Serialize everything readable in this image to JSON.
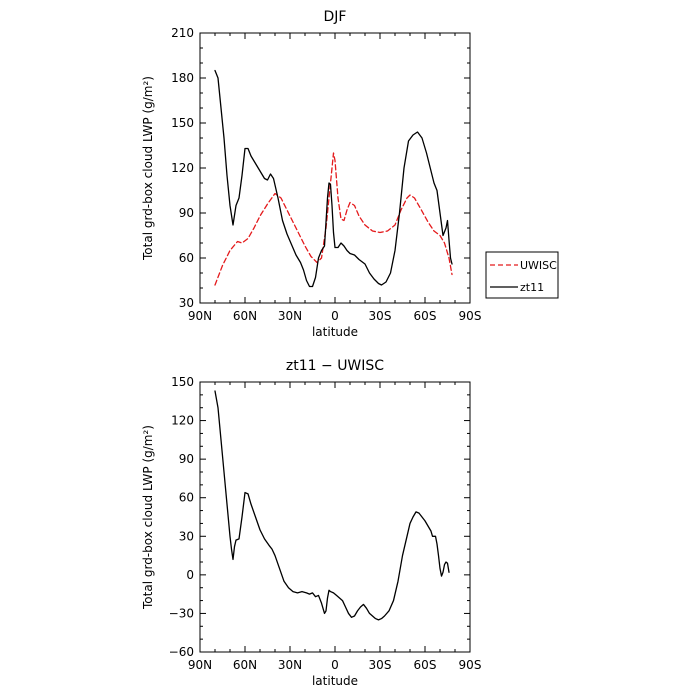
{
  "chart_data": [
    {
      "type": "line",
      "title": "DJF",
      "xlabel": "latitude",
      "ylabel": "Total grd-box cloud LWP (g/m²)",
      "xlim": [
        90,
        -90
      ],
      "ylim": [
        30,
        210
      ],
      "x_ticks": [
        90,
        60,
        30,
        0,
        -30,
        -60,
        -90
      ],
      "x_tick_labels": [
        "90N",
        "60N",
        "30N",
        "0",
        "30S",
        "60S",
        "90S"
      ],
      "y_ticks": [
        30,
        60,
        90,
        120,
        150,
        180,
        210
      ],
      "y_tick_labels": [
        "30",
        "60",
        "90",
        "120",
        "150",
        "180",
        "210"
      ],
      "grid": false,
      "legend_position": "right",
      "series": [
        {
          "name": "UWISC",
          "color": "#e41a1c",
          "style": "dashed",
          "points": [
            [
              80,
              42
            ],
            [
              75,
              55
            ],
            [
              70,
              65
            ],
            [
              65,
              71
            ],
            [
              62,
              70
            ],
            [
              58,
              73
            ],
            [
              54,
              80
            ],
            [
              50,
              88
            ],
            [
              45,
              96
            ],
            [
              40,
              103
            ],
            [
              36,
              100
            ],
            [
              32,
              92
            ],
            [
              28,
              84
            ],
            [
              24,
              76
            ],
            [
              20,
              68
            ],
            [
              16,
              61
            ],
            [
              12,
              57
            ],
            [
              9,
              60
            ],
            [
              6,
              80
            ],
            [
              4,
              100
            ],
            [
              2,
              120
            ],
            [
              1,
              130
            ],
            [
              0,
              125
            ],
            [
              -2,
              100
            ],
            [
              -4,
              86
            ],
            [
              -6,
              85
            ],
            [
              -8,
              92
            ],
            [
              -10,
              97
            ],
            [
              -13,
              95
            ],
            [
              -16,
              88
            ],
            [
              -20,
              82
            ],
            [
              -25,
              78
            ],
            [
              -30,
              77
            ],
            [
              -35,
              78
            ],
            [
              -40,
              82
            ],
            [
              -44,
              92
            ],
            [
              -48,
              100
            ],
            [
              -50,
              102
            ],
            [
              -53,
              100
            ],
            [
              -57,
              93
            ],
            [
              -62,
              84
            ],
            [
              -66,
              78
            ],
            [
              -70,
              75
            ],
            [
              -73,
              70
            ],
            [
              -76,
              60
            ],
            [
              -78,
              49
            ]
          ]
        },
        {
          "name": "zt11",
          "color": "#000000",
          "style": "solid",
          "points": [
            [
              80,
              185
            ],
            [
              78,
              180
            ],
            [
              76,
              160
            ],
            [
              74,
              140
            ],
            [
              72,
              115
            ],
            [
              70,
              95
            ],
            [
              68,
              82
            ],
            [
              66,
              95
            ],
            [
              64,
              100
            ],
            [
              62,
              115
            ],
            [
              60,
              133
            ],
            [
              58,
              133
            ],
            [
              56,
              128
            ],
            [
              53,
              123
            ],
            [
              50,
              118
            ],
            [
              47,
              113
            ],
            [
              45,
              112
            ],
            [
              43,
              116
            ],
            [
              41,
              113
            ],
            [
              38,
              100
            ],
            [
              35,
              85
            ],
            [
              32,
              76
            ],
            [
              29,
              69
            ],
            [
              26,
              62
            ],
            [
              23,
              57
            ],
            [
              21,
              52
            ],
            [
              19,
              45
            ],
            [
              17,
              41
            ],
            [
              15,
              41
            ],
            [
              13,
              47
            ],
            [
              11,
              60
            ],
            [
              9,
              65
            ],
            [
              7,
              68
            ],
            [
              5,
              100
            ],
            [
              4,
              110
            ],
            [
              3,
              109
            ],
            [
              2,
              95
            ],
            [
              1,
              77
            ],
            [
              0,
              67
            ],
            [
              -2,
              67
            ],
            [
              -4,
              70
            ],
            [
              -6,
              68
            ],
            [
              -8,
              65
            ],
            [
              -10,
              63
            ],
            [
              -13,
              62
            ],
            [
              -16,
              59
            ],
            [
              -20,
              56
            ],
            [
              -23,
              50
            ],
            [
              -26,
              46
            ],
            [
              -29,
              43
            ],
            [
              -31,
              42
            ],
            [
              -34,
              44
            ],
            [
              -37,
              50
            ],
            [
              -40,
              65
            ],
            [
              -43,
              90
            ],
            [
              -46,
              120
            ],
            [
              -49,
              138
            ],
            [
              -52,
              142
            ],
            [
              -55,
              144
            ],
            [
              -58,
              140
            ],
            [
              -61,
              130
            ],
            [
              -64,
              118
            ],
            [
              -66,
              110
            ],
            [
              -68,
              105
            ],
            [
              -70,
              90
            ],
            [
              -72,
              75
            ],
            [
              -74,
              80
            ],
            [
              -75,
              85
            ],
            [
              -76,
              72
            ],
            [
              -77,
              60
            ],
            [
              -78,
              56
            ]
          ]
        }
      ]
    },
    {
      "type": "line",
      "title": "zt11 − UWISC",
      "xlabel": "latitude",
      "ylabel": "Total grd-box cloud LWP (g/m²)",
      "xlim": [
        90,
        -90
      ],
      "ylim": [
        -60,
        150
      ],
      "x_ticks": [
        90,
        60,
        30,
        0,
        -30,
        -60,
        -90
      ],
      "x_tick_labels": [
        "90N",
        "60N",
        "30N",
        "0",
        "30S",
        "60S",
        "90S"
      ],
      "y_ticks": [
        -60,
        -30,
        0,
        30,
        60,
        90,
        120,
        150
      ],
      "y_tick_labels": [
        "−60",
        "−30",
        "0",
        "30",
        "60",
        "90",
        "120",
        "150"
      ],
      "grid": false,
      "series": [
        {
          "name": "zt11 − UWISC",
          "color": "#000000",
          "style": "solid",
          "points": [
            [
              80,
              143
            ],
            [
              78,
              130
            ],
            [
              76,
              105
            ],
            [
              74,
              80
            ],
            [
              72,
              55
            ],
            [
              70,
              30
            ],
            [
              69,
              20
            ],
            [
              68,
              12
            ],
            [
              67,
              22
            ],
            [
              66,
              27
            ],
            [
              64,
              28
            ],
            [
              62,
              45
            ],
            [
              60,
              64
            ],
            [
              58,
              63
            ],
            [
              56,
              55
            ],
            [
              53,
              45
            ],
            [
              50,
              35
            ],
            [
              47,
              28
            ],
            [
              44,
              23
            ],
            [
              42,
              20
            ],
            [
              40,
              15
            ],
            [
              37,
              5
            ],
            [
              34,
              -5
            ],
            [
              31,
              -10
            ],
            [
              28,
              -13
            ],
            [
              25,
              -14
            ],
            [
              22,
              -13
            ],
            [
              19,
              -14
            ],
            [
              17,
              -15
            ],
            [
              15,
              -14
            ],
            [
              13,
              -17
            ],
            [
              11,
              -16
            ],
            [
              9,
              -22
            ],
            [
              7,
              -30
            ],
            [
              6,
              -28
            ],
            [
              5,
              -18
            ],
            [
              4,
              -12
            ],
            [
              3,
              -13
            ],
            [
              1,
              -14
            ],
            [
              -1,
              -16
            ],
            [
              -3,
              -18
            ],
            [
              -5,
              -20
            ],
            [
              -7,
              -25
            ],
            [
              -9,
              -30
            ],
            [
              -11,
              -33
            ],
            [
              -13,
              -32
            ],
            [
              -15,
              -28
            ],
            [
              -17,
              -25
            ],
            [
              -19,
              -23
            ],
            [
              -21,
              -26
            ],
            [
              -23,
              -30
            ],
            [
              -25,
              -32
            ],
            [
              -27,
              -34
            ],
            [
              -29,
              -35
            ],
            [
              -31,
              -34
            ],
            [
              -33,
              -32
            ],
            [
              -36,
              -28
            ],
            [
              -39,
              -20
            ],
            [
              -42,
              -5
            ],
            [
              -45,
              15
            ],
            [
              -48,
              30
            ],
            [
              -50,
              40
            ],
            [
              -52,
              45
            ],
            [
              -54,
              49
            ],
            [
              -56,
              48
            ],
            [
              -58,
              45
            ],
            [
              -60,
              42
            ],
            [
              -62,
              38
            ],
            [
              -64,
              34
            ],
            [
              -65,
              30
            ],
            [
              -67,
              30
            ],
            [
              -68,
              24
            ],
            [
              -69,
              15
            ],
            [
              -70,
              5
            ],
            [
              -71,
              -1
            ],
            [
              -72,
              2
            ],
            [
              -73,
              8
            ],
            [
              -74,
              10
            ],
            [
              -75,
              9
            ],
            [
              -76,
              2
            ]
          ]
        }
      ]
    }
  ]
}
